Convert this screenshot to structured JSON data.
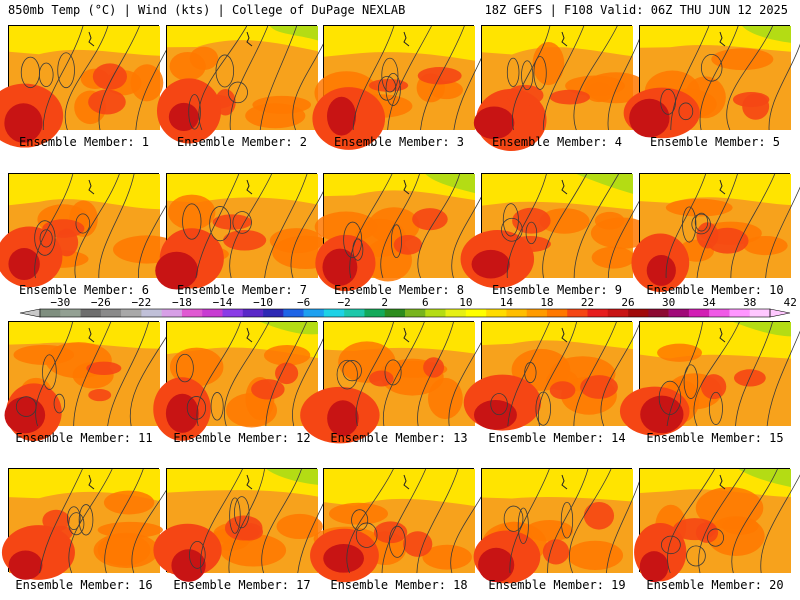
{
  "header": {
    "left": "850mb Temp (°C) | Wind (kts) | College of DuPage NEXLAB",
    "right": "18Z GEFS | F108 Valid: 06Z THU JUN 12 2025"
  },
  "panels": [
    {
      "label": "Ensemble Member: 1"
    },
    {
      "label": "Ensemble Member: 2"
    },
    {
      "label": "Ensemble Member: 3"
    },
    {
      "label": "Ensemble Member: 4"
    },
    {
      "label": "Ensemble Member: 5"
    },
    {
      "label": "Ensemble Member: 6"
    },
    {
      "label": "Ensemble Member: 7"
    },
    {
      "label": "Ensemble Member: 8"
    },
    {
      "label": "Ensemble Member: 9"
    },
    {
      "label": "Ensemble Member: 10"
    },
    {
      "label": "Ensemble Member: 11"
    },
    {
      "label": "Ensemble Member: 12"
    },
    {
      "label": "Ensemble Member: 13"
    },
    {
      "label": "Ensemble Member: 14"
    },
    {
      "label": "Ensemble Member: 15"
    },
    {
      "label": "Ensemble Member: 16"
    },
    {
      "label": "Ensemble Member: 17"
    },
    {
      "label": "Ensemble Member: 18"
    },
    {
      "label": "Ensemble Member: 19"
    },
    {
      "label": "Ensemble Member: 20"
    }
  ],
  "colorbar": {
    "tick_labels": [
      "−30",
      "−26",
      "−22",
      "−18",
      "−14",
      "−10",
      "−6",
      "−2",
      "2",
      "6",
      "10",
      "14",
      "18",
      "22",
      "26",
      "30",
      "34",
      "38",
      "42"
    ],
    "colors": [
      "#7f8f7f",
      "#93a093",
      "#6e6e6e",
      "#8a8a8a",
      "#a8a8a8",
      "#c0c0d8",
      "#d79fe6",
      "#e05ad2",
      "#c83cd2",
      "#8a3ce6",
      "#5a28c8",
      "#2d28b4",
      "#1e64e6",
      "#1ea0f0",
      "#1ed2e6",
      "#1ec8aa",
      "#14aa5a",
      "#2d8c1e",
      "#78b41e",
      "#b4dc14",
      "#e6f014",
      "#ffff00",
      "#ffdc00",
      "#ffbe00",
      "#ff9b00",
      "#ff7800",
      "#f54614",
      "#e61e1e",
      "#c81414",
      "#a00a0a",
      "#8c0a32",
      "#a00a78",
      "#d21eb4",
      "#f05ae6",
      "#ff96ff",
      "#ffc8ff"
    ]
  }
}
